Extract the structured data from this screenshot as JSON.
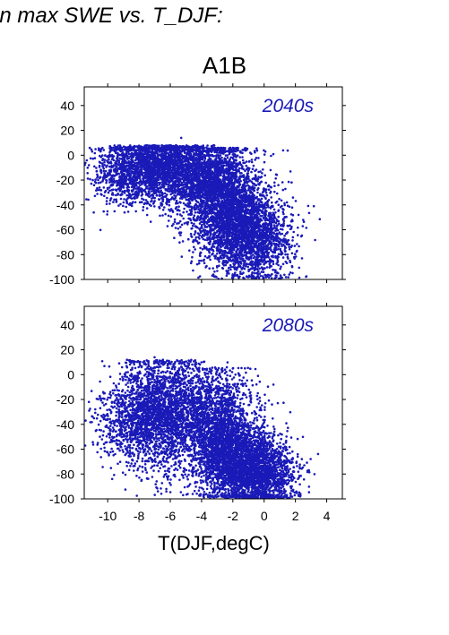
{
  "page_title": "in max SWE vs. T_DJF:",
  "scenario": "A1B",
  "x_axis_label": "T(DJF,degC)",
  "colors": {
    "points": "#1a1ab8",
    "panel_label": "#1a1ab8",
    "axes": "#000000"
  },
  "chart_data": [
    {
      "type": "scatter",
      "panel_label": "2040s",
      "xlim": [
        -11.5,
        5
      ],
      "ylim": [
        -100,
        55
      ],
      "yticks": [
        40,
        20,
        0,
        -20,
        -40,
        -60,
        -80,
        -100
      ],
      "xticks": [
        -10,
        -8,
        -6,
        -4,
        -2,
        0,
        2,
        4
      ],
      "grid": false,
      "series": [
        {
          "clusters": [
            {
              "cx": -6.5,
              "cy": -10,
              "sx": 1.6,
              "sy": 14,
              "n": 2200,
              "ymax": 8
            },
            {
              "cx": -3.2,
              "cy": -22,
              "sx": 1.3,
              "sy": 18,
              "n": 1900,
              "ymax": 6
            },
            {
              "cx": -1.8,
              "cy": -55,
              "sx": 1.3,
              "sy": 18,
              "n": 2200,
              "ymax": 6
            },
            {
              "cx": -0.3,
              "cy": -70,
              "sx": 1.1,
              "sy": 15,
              "n": 900,
              "ymax": 6
            },
            {
              "cx": -8.8,
              "cy": -15,
              "sx": 1.2,
              "sy": 14,
              "n": 500,
              "ymax": 6
            }
          ],
          "values": [
            [
              -11.2,
              -8
            ],
            [
              -10.5,
              -18
            ],
            [
              1.5,
              -62
            ],
            [
              2.2,
              -48
            ],
            [
              1.8,
              -90
            ],
            [
              -5.3,
              14
            ],
            [
              -9.8,
              -35
            ],
            [
              1.6,
              -96
            ],
            [
              -2.0,
              -98
            ]
          ]
        }
      ]
    },
    {
      "type": "scatter",
      "panel_label": "2080s",
      "xlim": [
        -11.5,
        5
      ],
      "ylim": [
        -100,
        55
      ],
      "yticks": [
        40,
        20,
        0,
        -20,
        -40,
        -60,
        -80,
        -100
      ],
      "xticks": [
        -10,
        -8,
        -6,
        -4,
        -2,
        0,
        2,
        4
      ],
      "grid": false,
      "series": [
        {
          "clusters": [
            {
              "cx": -6.5,
              "cy": -30,
              "sx": 1.5,
              "sy": 22,
              "n": 2300,
              "ymax": 12
            },
            {
              "cx": -3.0,
              "cy": -40,
              "sx": 1.2,
              "sy": 22,
              "n": 1800,
              "ymax": 6
            },
            {
              "cx": -1.5,
              "cy": -72,
              "sx": 1.3,
              "sy": 16,
              "n": 2200,
              "ymax": 0
            },
            {
              "cx": 0.2,
              "cy": -82,
              "sx": 1.0,
              "sy": 12,
              "n": 800,
              "ymax": -20
            },
            {
              "cx": -8.5,
              "cy": -38,
              "sx": 1.2,
              "sy": 18,
              "n": 500,
              "ymax": 10
            }
          ],
          "values": [
            [
              -11.2,
              -22
            ],
            [
              -10.5,
              -50
            ],
            [
              -10.2,
              -15
            ],
            [
              2.3,
              -98
            ],
            [
              1.7,
              -96
            ],
            [
              -7.0,
              14
            ],
            [
              -2.0,
              5
            ],
            [
              0.5,
              -24
            ]
          ]
        }
      ]
    }
  ]
}
